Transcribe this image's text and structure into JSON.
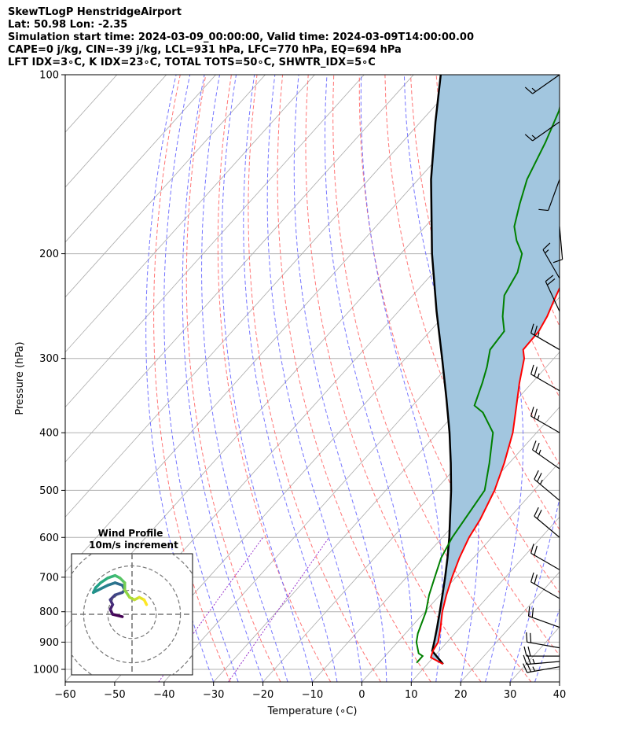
{
  "header": {
    "title": "SkewTLogP HenstridgeAirport",
    "location": "Lat: 50.98   Lon: -2.35",
    "times": "Simulation start time: 2024-03-09_00:00:00, Valid time: 2024-03-09T14:00:00.00",
    "indices1": "CAPE=0 j/kg, CIN=-39 j/kg, LCL=931 hPa, LFC=770 hPa, EQ=694 hPa",
    "indices2": "LFT IDX=3∘C, K IDX=23∘C, TOTAL TOTS=50∘C, SHWTR_IDX=5∘C"
  },
  "chart_data": [
    {
      "type": "line",
      "subtype": "skew-T log-p diagram",
      "xlabel": "Temperature (∘C)",
      "ylabel": "Pressure (hPa)",
      "xlim": [
        -60,
        40
      ],
      "ylim": [
        1050,
        100
      ],
      "y_scale": "log",
      "grid": true,
      "x_ticks": [
        "−60",
        "−50",
        "−40",
        "−30",
        "−20",
        "−10",
        "0",
        "10",
        "20",
        "30",
        "40"
      ],
      "y_ticks": [
        "100",
        "200",
        "300",
        "400",
        "500",
        "600",
        "700",
        "800",
        "900",
        "1000"
      ],
      "colors": {
        "temperature": "#ff0000",
        "dewpoint": "#008000",
        "parcel": "#000000",
        "shading": "#a2c6df",
        "dry_adiabats": "#ff6666",
        "moist_adiabats": "#6666ff",
        "isotherms": "#aaaaaa",
        "mixing_ratio": "#9933cc"
      },
      "series": [
        {
          "key": "temperature",
          "points": [
            {
              "p": 980,
              "t": 13.2
            },
            {
              "p": 955,
              "t": 9.5
            },
            {
              "p": 930,
              "t": 8.7
            },
            {
              "p": 900,
              "t": 8.2
            },
            {
              "p": 850,
              "t": 6.0
            },
            {
              "p": 800,
              "t": 3.5
            },
            {
              "p": 750,
              "t": 1.3
            },
            {
              "p": 700,
              "t": -0.8
            },
            {
              "p": 650,
              "t": -2.8
            },
            {
              "p": 600,
              "t": -4.6
            },
            {
              "p": 560,
              "t": -5.6
            },
            {
              "p": 500,
              "t": -8.0
            },
            {
              "p": 450,
              "t": -11.0
            },
            {
              "p": 400,
              "t": -14.8
            },
            {
              "p": 360,
              "t": -19.0
            },
            {
              "p": 330,
              "t": -22.5
            },
            {
              "p": 300,
              "t": -26.0
            },
            {
              "p": 290,
              "t": -27.8
            },
            {
              "p": 270,
              "t": -28.0
            },
            {
              "p": 255,
              "t": -29.0
            },
            {
              "p": 240,
              "t": -30.5
            },
            {
              "p": 220,
              "t": -32.5
            },
            {
              "p": 200,
              "t": -36.0
            },
            {
              "p": 180,
              "t": -39.5
            },
            {
              "p": 160,
              "t": -42.5
            },
            {
              "p": 140,
              "t": -46.0
            },
            {
              "p": 120,
              "t": -50.0
            },
            {
              "p": 100,
              "t": -55.0
            }
          ]
        },
        {
          "key": "dewpoint",
          "points": [
            {
              "p": 975,
              "t": 7.6
            },
            {
              "p": 950,
              "t": 7.6
            },
            {
              "p": 940,
              "t": 6.3
            },
            {
              "p": 900,
              "t": 3.8
            },
            {
              "p": 870,
              "t": 2.5
            },
            {
              "p": 800,
              "t": 0.2
            },
            {
              "p": 750,
              "t": -2.2
            },
            {
              "p": 700,
              "t": -4.3
            },
            {
              "p": 650,
              "t": -6.5
            },
            {
              "p": 600,
              "t": -8.0
            },
            {
              "p": 500,
              "t": -10.0
            },
            {
              "p": 450,
              "t": -14.0
            },
            {
              "p": 400,
              "t": -18.8
            },
            {
              "p": 370,
              "t": -24.5
            },
            {
              "p": 360,
              "t": -27.5
            },
            {
              "p": 330,
              "t": -30.0
            },
            {
              "p": 310,
              "t": -32.0
            },
            {
              "p": 290,
              "t": -34.5
            },
            {
              "p": 270,
              "t": -35.0
            },
            {
              "p": 255,
              "t": -38.0
            },
            {
              "p": 235,
              "t": -41.5
            },
            {
              "p": 215,
              "t": -43.0
            },
            {
              "p": 200,
              "t": -45.5
            },
            {
              "p": 190,
              "t": -49.0
            },
            {
              "p": 180,
              "t": -52.0
            },
            {
              "p": 165,
              "t": -55.0
            },
            {
              "p": 150,
              "t": -58.0
            },
            {
              "p": 130,
              "t": -61.0
            },
            {
              "p": 115,
              "t": -64.0
            },
            {
              "p": 100,
              "t": -69.0
            }
          ]
        },
        {
          "key": "parcel",
          "points": [
            {
              "p": 980,
              "t": 13.2
            },
            {
              "p": 931,
              "t": 8.6
            },
            {
              "p": 900,
              "t": 7.4
            },
            {
              "p": 850,
              "t": 5.3
            },
            {
              "p": 800,
              "t": 3.0
            },
            {
              "p": 750,
              "t": 0.5
            },
            {
              "p": 700,
              "t": -2.2
            },
            {
              "p": 650,
              "t": -5.2
            },
            {
              "p": 600,
              "t": -8.6
            },
            {
              "p": 550,
              "t": -12.5
            },
            {
              "p": 500,
              "t": -16.8
            },
            {
              "p": 450,
              "t": -21.8
            },
            {
              "p": 400,
              "t": -27.6
            },
            {
              "p": 350,
              "t": -34.5
            },
            {
              "p": 300,
              "t": -42.6
            },
            {
              "p": 250,
              "t": -52.3
            },
            {
              "p": 200,
              "t": -63.7
            },
            {
              "p": 150,
              "t": -77.4
            },
            {
              "p": 120,
              "t": -87.0
            },
            {
              "p": 100,
              "t": -94.5
            }
          ]
        }
      ],
      "wind_barbs": [
        {
          "p": 100,
          "speed_kt": 15,
          "direction_deg": 235
        },
        {
          "p": 120,
          "speed_kt": 15,
          "direction_deg": 235
        },
        {
          "p": 150,
          "speed_kt": 10,
          "direction_deg": 200
        },
        {
          "p": 180,
          "speed_kt": 10,
          "direction_deg": 175
        },
        {
          "p": 220,
          "speed_kt": 15,
          "direction_deg": 330
        },
        {
          "p": 250,
          "speed_kt": 20,
          "direction_deg": 335
        },
        {
          "p": 290,
          "speed_kt": 25,
          "direction_deg": 300
        },
        {
          "p": 340,
          "speed_kt": 25,
          "direction_deg": 300
        },
        {
          "p": 400,
          "speed_kt": 25,
          "direction_deg": 300
        },
        {
          "p": 460,
          "speed_kt": 25,
          "direction_deg": 305
        },
        {
          "p": 520,
          "speed_kt": 25,
          "direction_deg": 310
        },
        {
          "p": 600,
          "speed_kt": 20,
          "direction_deg": 310
        },
        {
          "p": 680,
          "speed_kt": 20,
          "direction_deg": 300
        },
        {
          "p": 760,
          "speed_kt": 20,
          "direction_deg": 300
        },
        {
          "p": 850,
          "speed_kt": 20,
          "direction_deg": 290
        },
        {
          "p": 920,
          "speed_kt": 20,
          "direction_deg": 280
        },
        {
          "p": 950,
          "speed_kt": 20,
          "direction_deg": 270
        },
        {
          "p": 970,
          "speed_kt": 25,
          "direction_deg": 265
        },
        {
          "p": 990,
          "speed_kt": 25,
          "direction_deg": 260
        }
      ]
    },
    {
      "type": "line",
      "subtype": "hodograph",
      "title": "Wind Profile",
      "subtitle": "10m/s increment",
      "rings_ms": [
        10,
        20,
        30
      ],
      "xlim": [
        -25,
        25
      ],
      "ylim": [
        -25,
        25
      ],
      "points_uv": [
        [
          -4,
          -1
        ],
        [
          -8,
          0
        ],
        [
          -9,
          2
        ],
        [
          -8,
          4
        ],
        [
          -9,
          6
        ],
        [
          -7,
          8
        ],
        [
          -4,
          9
        ],
        [
          -3,
          10
        ],
        [
          -4,
          12
        ],
        [
          -7,
          13
        ],
        [
          -10,
          12
        ],
        [
          -14,
          10
        ],
        [
          -16,
          9
        ],
        [
          -15,
          11
        ],
        [
          -13,
          13
        ],
        [
          -10,
          15
        ],
        [
          -7,
          16
        ],
        [
          -5,
          15
        ],
        [
          -3,
          13
        ],
        [
          -3,
          10
        ],
        [
          -1,
          7
        ],
        [
          1,
          6
        ],
        [
          3,
          7
        ],
        [
          5,
          6
        ],
        [
          6,
          4
        ]
      ]
    }
  ]
}
